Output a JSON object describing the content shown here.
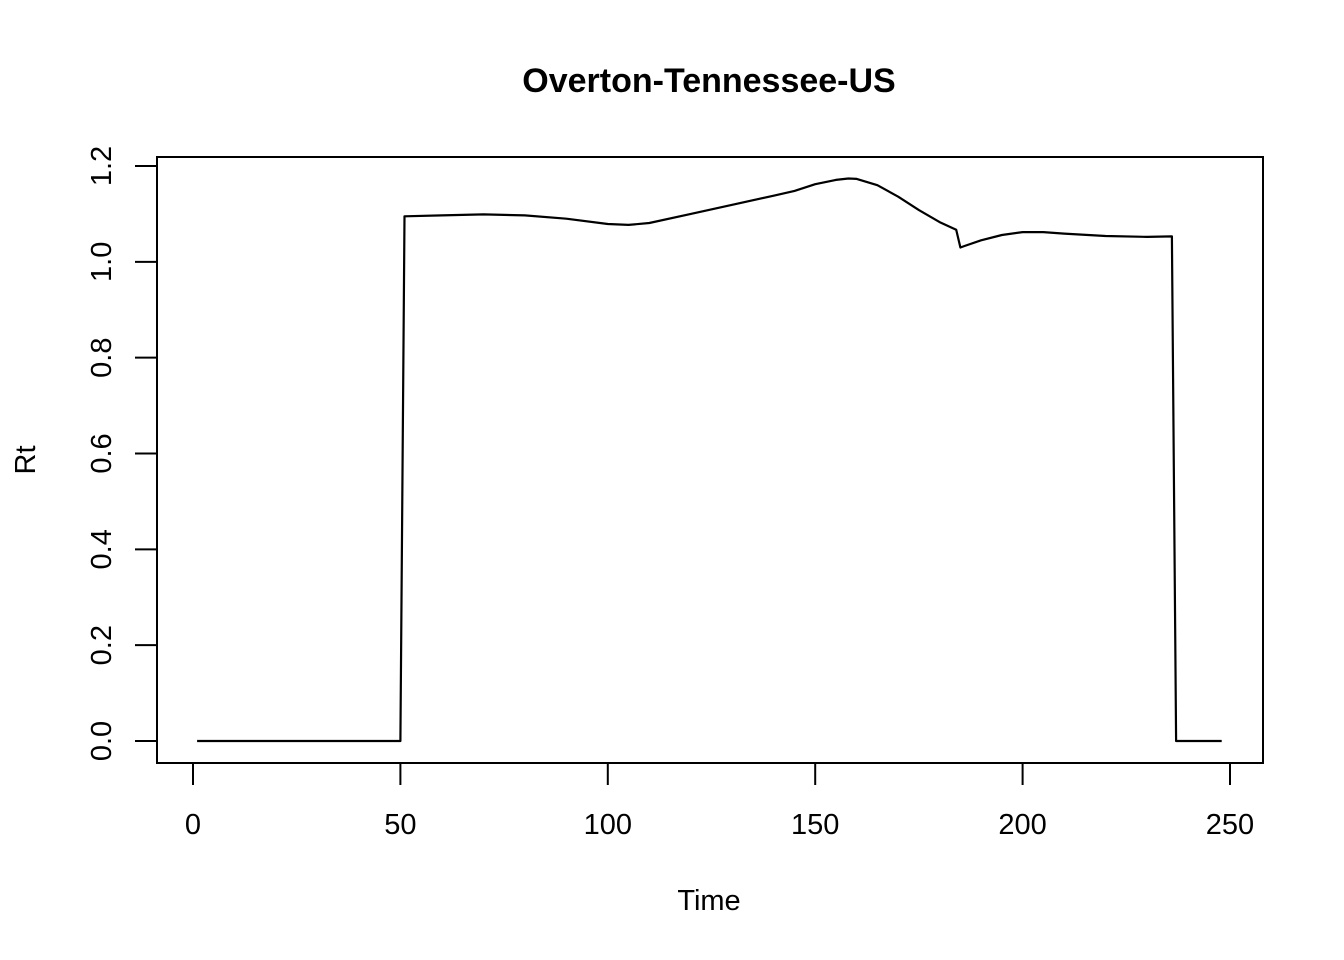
{
  "chart_data": {
    "type": "line",
    "title": "Overton-Tennessee-US",
    "xlabel": "Time",
    "ylabel": "Rt",
    "xlim": [
      1,
      248
    ],
    "ylim": [
      0,
      1.2
    ],
    "x_ticks": [
      0,
      50,
      100,
      150,
      200,
      250
    ],
    "y_ticks": [
      0.0,
      0.2,
      0.4,
      0.6,
      0.8,
      1.0,
      1.2
    ],
    "x_tick_labels": [
      "0",
      "50",
      "100",
      "150",
      "200",
      "250"
    ],
    "y_tick_labels": [
      "0.0",
      "0.2",
      "0.4",
      "0.6",
      "0.8",
      "1.0",
      "1.2"
    ],
    "grid": false,
    "line_color": "#000000",
    "series": [
      {
        "x": [
          1,
          50,
          51,
          60,
          70,
          80,
          90,
          100,
          105,
          110,
          120,
          130,
          140,
          145,
          150,
          155,
          158,
          160,
          165,
          170,
          175,
          180,
          184,
          185,
          186,
          190,
          195,
          200,
          205,
          210,
          220,
          230,
          236,
          237,
          248
        ],
        "y": [
          0,
          0,
          1.095,
          1.097,
          1.099,
          1.097,
          1.09,
          1.079,
          1.077,
          1.081,
          1.1,
          1.119,
          1.138,
          1.148,
          1.162,
          1.171,
          1.174,
          1.173,
          1.16,
          1.136,
          1.108,
          1.083,
          1.067,
          1.03,
          1.033,
          1.045,
          1.056,
          1.062,
          1.062,
          1.059,
          1.054,
          1.052,
          1.053,
          0,
          0
        ]
      }
    ]
  }
}
